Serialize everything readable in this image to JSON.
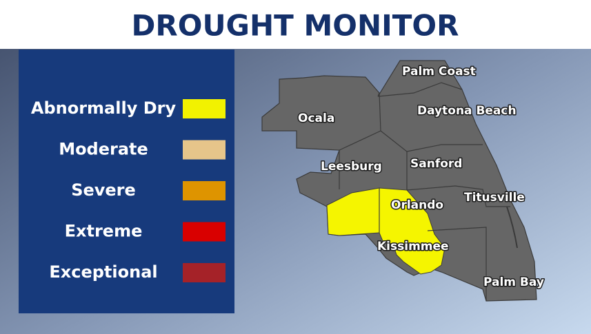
{
  "title": "DROUGHT MONITOR",
  "legend": [
    {
      "label": "Abnormally Dry",
      "color": "#f2f200"
    },
    {
      "label": "Moderate",
      "color": "#e6c58a"
    },
    {
      "label": "Severe",
      "color": "#de9400"
    },
    {
      "label": "Extreme",
      "color": "#d90000"
    },
    {
      "label": "Exceptional",
      "color": "#a52228"
    }
  ],
  "cities": [
    "Palm Coast",
    "Ocala",
    "Daytona Beach",
    "Leesburg",
    "Sanford",
    "Orlando",
    "Titusville",
    "Kissimmee",
    "Palm Bay"
  ]
}
